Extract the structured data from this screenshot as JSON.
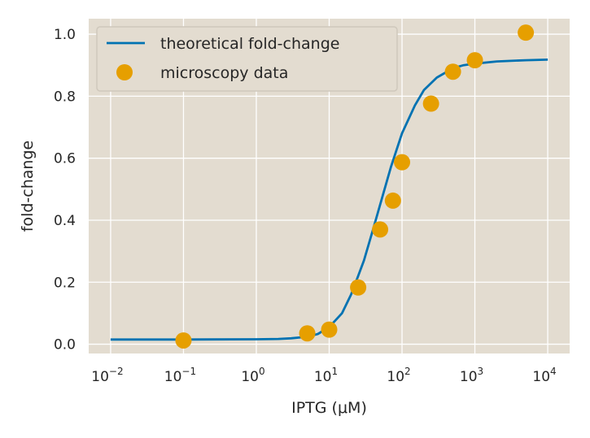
{
  "chart_data": {
    "type": "line",
    "title": "",
    "xlabel": "IPTG (μM)",
    "ylabel": "fold-change",
    "x_scale": "log",
    "xlim": [
      0.005,
      20000
    ],
    "ylim": [
      -0.03,
      1.05
    ],
    "grid": true,
    "legend_position": "top-left",
    "x_ticks": [
      {
        "value": 0.01,
        "base": "10",
        "exp": "−2"
      },
      {
        "value": 0.1,
        "base": "10",
        "exp": "−1"
      },
      {
        "value": 1,
        "base": "10",
        "exp": "0"
      },
      {
        "value": 10,
        "base": "10",
        "exp": "1"
      },
      {
        "value": 100,
        "base": "10",
        "exp": "2"
      },
      {
        "value": 1000,
        "base": "10",
        "exp": "3"
      },
      {
        "value": 10000,
        "base": "10",
        "exp": "4"
      }
    ],
    "y_ticks": [
      {
        "value": 0.0,
        "label": "0.0"
      },
      {
        "value": 0.2,
        "label": "0.2"
      },
      {
        "value": 0.4,
        "label": "0.4"
      },
      {
        "value": 0.6,
        "label": "0.6"
      },
      {
        "value": 0.8,
        "label": "0.8"
      },
      {
        "value": 1.0,
        "label": "1.0"
      }
    ],
    "series": [
      {
        "name": "theoretical fold-change",
        "kind": "line",
        "color": "#0072b2",
        "x": [
          0.01,
          0.1,
          1,
          2,
          3,
          5,
          7,
          10,
          15,
          20,
          25,
          30,
          40,
          50,
          70,
          100,
          150,
          200,
          300,
          500,
          700,
          1000,
          2000,
          5000,
          10000
        ],
        "y": [
          0.015,
          0.015,
          0.016,
          0.017,
          0.019,
          0.024,
          0.033,
          0.055,
          0.1,
          0.16,
          0.22,
          0.27,
          0.37,
          0.45,
          0.57,
          0.68,
          0.77,
          0.82,
          0.86,
          0.89,
          0.9,
          0.905,
          0.912,
          0.916,
          0.918
        ]
      },
      {
        "name": "microscopy data",
        "kind": "scatter",
        "color": "#e69f00",
        "x": [
          0.1,
          5,
          10,
          25,
          50,
          75,
          100,
          250,
          500,
          1000,
          5000
        ],
        "y": [
          0.012,
          0.035,
          0.047,
          0.183,
          0.37,
          0.463,
          0.587,
          0.776,
          0.879,
          0.916,
          1.005
        ]
      }
    ]
  },
  "colors": {
    "plot_background": "#e3dcd0",
    "grid": "#ffffff",
    "line": "#0072b2",
    "markers": "#e69f00"
  }
}
